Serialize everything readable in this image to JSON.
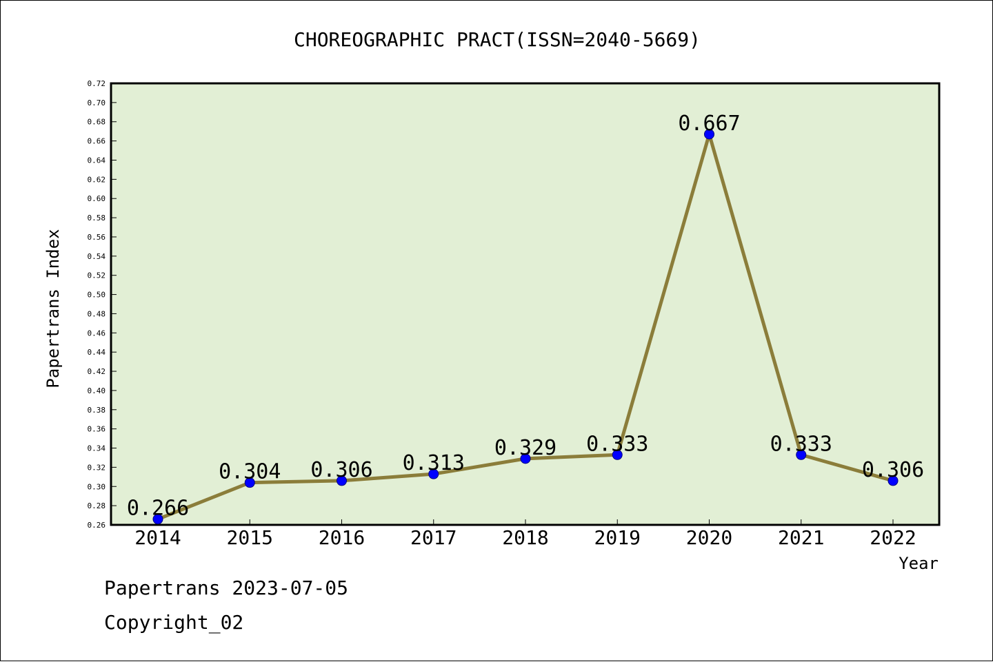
{
  "footer": {
    "line1": "Papertrans 2023-07-05",
    "line2": "Copyright_02"
  },
  "chart_data": {
    "type": "line",
    "title": "CHOREOGRAPHIC PRACT(ISSN=2040-5669)",
    "xlabel": "Year",
    "ylabel": "Papertrans Index",
    "categories": [
      "2014",
      "2015",
      "2016",
      "2017",
      "2018",
      "2019",
      "2020",
      "2021",
      "2022"
    ],
    "values": [
      0.266,
      0.304,
      0.306,
      0.313,
      0.329,
      0.333,
      0.667,
      0.333,
      0.306
    ],
    "ylim": [
      0.26,
      0.72
    ],
    "ytick_step": 0.02,
    "grid": false,
    "legend": "none",
    "colors": {
      "plot_background": "#e2efd5",
      "line": "#8b7d3a",
      "marker": "#0000ff"
    }
  }
}
